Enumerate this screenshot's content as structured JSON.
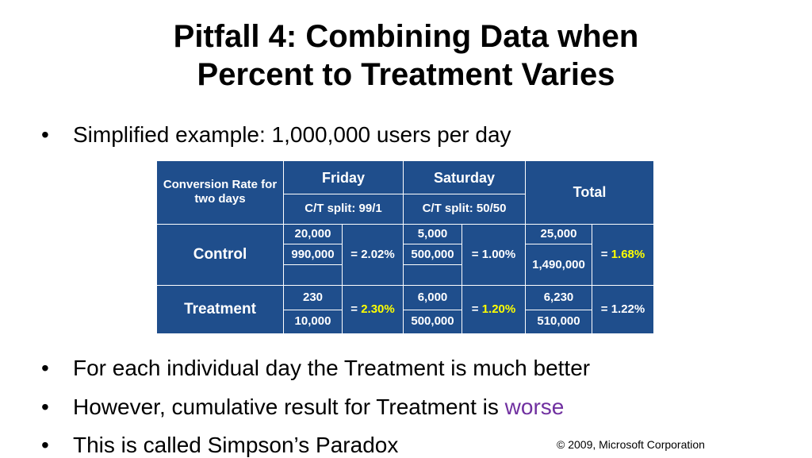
{
  "title": {
    "line1": "Pitfall 4: Combining Data when",
    "line2": "Percent to Treatment Varies"
  },
  "bullet_glyph": "•",
  "bullets": {
    "b1": "Simplified example: 1,000,000 users per day",
    "b2": "For each individual day the Treatment is much better",
    "b3_prefix": "However, cumulative result for Treatment is ",
    "b3_highlight": "worse",
    "b4": "This is called Simpson’s Paradox"
  },
  "table": {
    "corner": "Conversion Rate for two days",
    "friday": "Friday",
    "saturday": "Saturday",
    "total": "Total",
    "friday_split": "C/T split: 99/1",
    "saturday_split": "C/T split: 50/50",
    "control": {
      "label": "Control",
      "fri_num": "20,000",
      "fri_den": "990,000",
      "fri_rate": "= 2.02%",
      "sat_num": "5,000",
      "sat_den": "500,000",
      "sat_rate": "= 1.00%",
      "tot_num": "25,000",
      "tot_den": "1,490,000",
      "tot_eq": "= ",
      "tot_rate": "1.68%"
    },
    "treatment": {
      "label": "Treatment",
      "fri_num": "230",
      "fri_den": "10,000",
      "fri_eq": "= ",
      "fri_rate": "2.30%",
      "sat_num": "6,000",
      "sat_den": "500,000",
      "sat_eq": "= ",
      "sat_rate": "1.20%",
      "tot_num": "6,230",
      "tot_den": "510,000",
      "tot_rate": "= 1.22%"
    }
  },
  "copyright": "© 2009, Microsoft Corporation",
  "colors": {
    "table_bg": "#1f4e8c",
    "highlight_yellow": "#ffff00",
    "worse_purple": "#7030a0"
  }
}
